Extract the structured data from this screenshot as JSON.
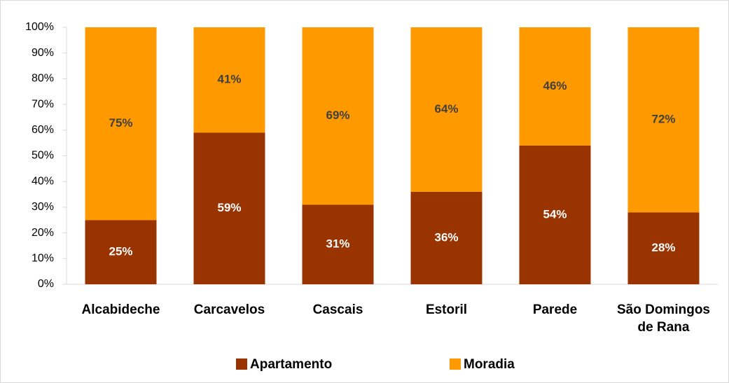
{
  "chart_data": {
    "type": "stacked_bar",
    "categories": [
      "Alcabideche",
      "Carcavelos",
      "Cascais",
      "Estoril",
      "Parede",
      "São Domingos de Rana"
    ],
    "series": [
      {
        "name": "Apartamento",
        "color": "#993300",
        "values": [
          25,
          59,
          31,
          36,
          54,
          28
        ],
        "value_labels": [
          "25%",
          "59%",
          "31%",
          "36%",
          "54%",
          "28%"
        ]
      },
      {
        "name": "Moradia",
        "color": "#ff9900",
        "values": [
          75,
          41,
          69,
          64,
          46,
          72
        ],
        "value_labels": [
          "75%",
          "41%",
          "69%",
          "64%",
          "46%",
          "72%"
        ]
      }
    ],
    "ylim": [
      0,
      100
    ],
    "yticks": [
      {
        "value": 0,
        "label": "0%"
      },
      {
        "value": 10,
        "label": "10%"
      },
      {
        "value": 20,
        "label": "20%"
      },
      {
        "value": 30,
        "label": "30%"
      },
      {
        "value": 40,
        "label": "40%"
      },
      {
        "value": 50,
        "label": "50%"
      },
      {
        "value": 60,
        "label": "60%"
      },
      {
        "value": 70,
        "label": "70%"
      },
      {
        "value": 80,
        "label": "80%"
      },
      {
        "value": 90,
        "label": "90%"
      },
      {
        "value": 100,
        "label": "100%"
      }
    ],
    "grid": false,
    "legend": "bottom"
  }
}
